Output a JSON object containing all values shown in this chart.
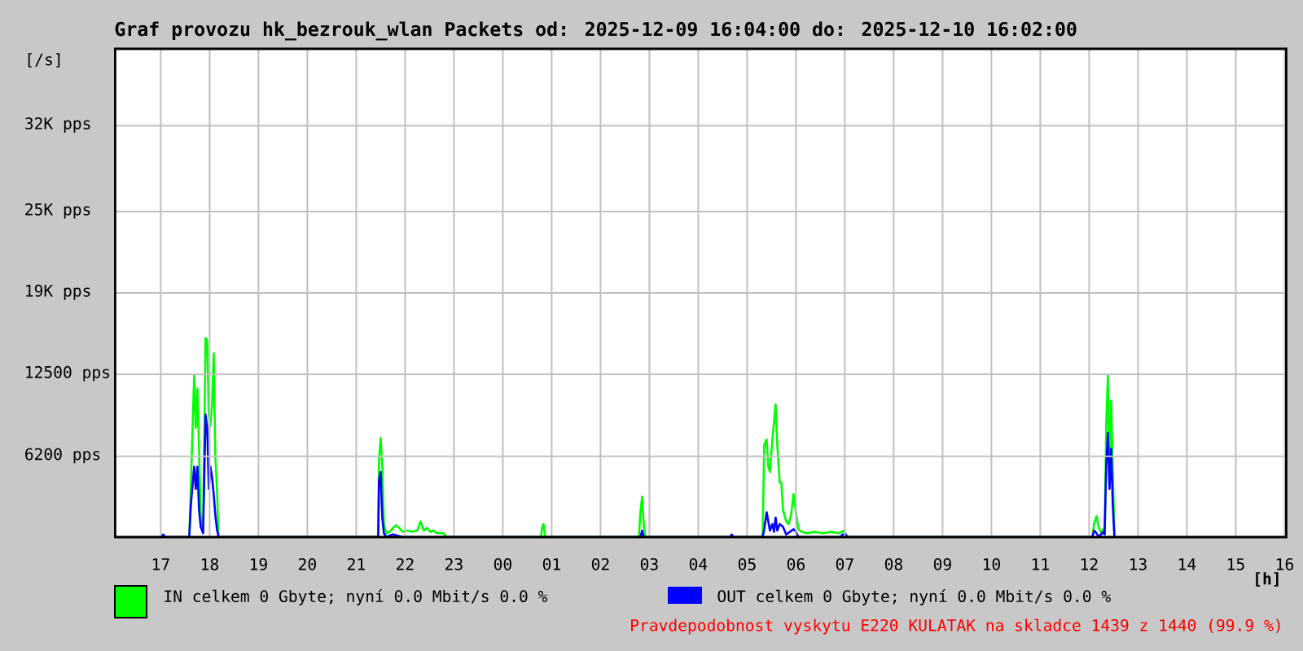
{
  "chart_data": {
    "type": "line",
    "title": "Graf provozu hk_bezrouk_wlan Packets od: 2025-12-09 16:04:00 do: 2025-12-10 16:02:00",
    "xlabel": "[h]",
    "ylabel": "[/s]",
    "xlim": [
      "2025-12-09T16:04",
      "2025-12-10T16:02"
    ],
    "xticks": [
      {
        "value": "2025-12-09T17:00",
        "label": "17"
      },
      {
        "value": "2025-12-09T18:00",
        "label": "18"
      },
      {
        "value": "2025-12-09T19:00",
        "label": "19"
      },
      {
        "value": "2025-12-09T20:00",
        "label": "20"
      },
      {
        "value": "2025-12-09T21:00",
        "label": "21"
      },
      {
        "value": "2025-12-09T22:00",
        "label": "22"
      },
      {
        "value": "2025-12-09T23:00",
        "label": "23"
      },
      {
        "value": "2025-12-10T00:00",
        "label": "00"
      },
      {
        "value": "2025-12-10T01:00",
        "label": "01"
      },
      {
        "value": "2025-12-10T02:00",
        "label": "02"
      },
      {
        "value": "2025-12-10T03:00",
        "label": "03"
      },
      {
        "value": "2025-12-10T04:00",
        "label": "04"
      },
      {
        "value": "2025-12-10T05:00",
        "label": "05"
      },
      {
        "value": "2025-12-10T06:00",
        "label": "06"
      },
      {
        "value": "2025-12-10T07:00",
        "label": "07"
      },
      {
        "value": "2025-12-10T08:00",
        "label": "08"
      },
      {
        "value": "2025-12-10T09:00",
        "label": "09"
      },
      {
        "value": "2025-12-10T10:00",
        "label": "10"
      },
      {
        "value": "2025-12-10T11:00",
        "label": "11"
      },
      {
        "value": "2025-12-10T12:00",
        "label": "12"
      },
      {
        "value": "2025-12-10T13:00",
        "label": "13"
      },
      {
        "value": "2025-12-10T14:00",
        "label": "14"
      },
      {
        "value": "2025-12-10T15:00",
        "label": "15"
      },
      {
        "value": "2025-12-10T16:00",
        "label": "16"
      }
    ],
    "ylim": [
      0,
      37500
    ],
    "yticks": [
      {
        "value": 6200,
        "label": "6200 pps"
      },
      {
        "value": 12500,
        "label": "12500 pps"
      },
      {
        "value": 18750,
        "label": "19K pps"
      },
      {
        "value": 25000,
        "label": "25K pps"
      },
      {
        "value": 31600,
        "label": "32K pps"
      }
    ],
    "grid": true,
    "legend": "bottom",
    "series": [
      {
        "name": "IN celkem 0 Gbyte; nyní 0.0 Mbit/s 0.0 %",
        "color": "#00ff00",
        "x": [
          "2025-12-09T17:35",
          "2025-12-09T17:37",
          "2025-12-09T17:41",
          "2025-12-09T17:43",
          "2025-12-09T17:45",
          "2025-12-09T17:47",
          "2025-12-09T17:49",
          "2025-12-09T17:52",
          "2025-12-09T17:55",
          "2025-12-09T17:57",
          "2025-12-09T17:59",
          "2025-12-09T18:01",
          "2025-12-09T18:03",
          "2025-12-09T18:05",
          "2025-12-09T18:07",
          "2025-12-09T18:09",
          "2025-12-09T18:11",
          "2025-12-09T21:27",
          "2025-12-09T21:28",
          "2025-12-09T21:30",
          "2025-12-09T21:32",
          "2025-12-09T21:34",
          "2025-12-09T21:37",
          "2025-12-09T21:41",
          "2025-12-09T21:45",
          "2025-12-09T21:49",
          "2025-12-09T21:53",
          "2025-12-09T21:57",
          "2025-12-09T22:03",
          "2025-12-09T22:09",
          "2025-12-09T22:15",
          "2025-12-09T22:19",
          "2025-12-09T22:23",
          "2025-12-09T22:27",
          "2025-12-09T22:31",
          "2025-12-09T22:35",
          "2025-12-09T22:39",
          "2025-12-09T22:43",
          "2025-12-09T22:47",
          "2025-12-09T22:51",
          "2025-12-10T00:47",
          "2025-12-10T00:48",
          "2025-12-10T00:50",
          "2025-12-10T00:52",
          "2025-12-10T02:47",
          "2025-12-10T02:49",
          "2025-12-10T02:51",
          "2025-12-10T02:53",
          "2025-12-10T02:55",
          "2025-12-10T05:19",
          "2025-12-10T05:21",
          "2025-12-10T05:24",
          "2025-12-10T05:26",
          "2025-12-10T05:28",
          "2025-12-10T05:31",
          "2025-12-10T05:33",
          "2025-12-10T05:35",
          "2025-12-10T05:37",
          "2025-12-10T05:40",
          "2025-12-10T05:42",
          "2025-12-10T05:44",
          "2025-12-10T05:48",
          "2025-12-10T05:51",
          "2025-12-10T05:54",
          "2025-12-10T05:57",
          "2025-12-10T06:00",
          "2025-12-10T06:03",
          "2025-12-10T06:07",
          "2025-12-10T06:13",
          "2025-12-10T06:23",
          "2025-12-10T06:33",
          "2025-12-10T06:43",
          "2025-12-10T06:53",
          "2025-12-10T06:59",
          "2025-12-10T07:03",
          "2025-12-10T12:04",
          "2025-12-10T12:06",
          "2025-12-10T12:09",
          "2025-12-10T12:12",
          "2025-12-10T12:15",
          "2025-12-10T12:17",
          "2025-12-10T12:19",
          "2025-12-10T12:21",
          "2025-12-10T12:23",
          "2025-12-10T12:25",
          "2025-12-10T12:27",
          "2025-12-10T12:29",
          "2025-12-10T12:31"
        ],
        "values": [
          0,
          4000,
          12400,
          8400,
          11400,
          6700,
          1700,
          600,
          15300,
          15100,
          9400,
          8500,
          10200,
          14100,
          6200,
          3700,
          0,
          0,
          6000,
          7600,
          5400,
          1000,
          300,
          400,
          700,
          900,
          700,
          400,
          500,
          400,
          500,
          1200,
          500,
          700,
          400,
          500,
          300,
          300,
          300,
          0,
          0,
          700,
          1000,
          0,
          0,
          1900,
          3100,
          1000,
          0,
          0,
          7100,
          7500,
          5400,
          5000,
          7500,
          8800,
          10200,
          7100,
          4200,
          4200,
          2100,
          1200,
          1000,
          1700,
          3300,
          1900,
          600,
          400,
          300,
          400,
          300,
          400,
          300,
          500,
          0,
          0,
          1000,
          1600,
          700,
          300,
          600,
          300,
          8800,
          12400,
          4200,
          10500,
          5200,
          0
        ]
      },
      {
        "name": "OUT celkem 0 Gbyte; nyní 0.0 Mbit/s 0.0 %",
        "color": "#0000ff",
        "x": [
          "2025-12-09T17:01",
          "2025-12-09T17:03",
          "2025-12-09T17:05",
          "2025-12-09T17:35",
          "2025-12-09T17:37",
          "2025-12-09T17:41",
          "2025-12-09T17:43",
          "2025-12-09T17:45",
          "2025-12-09T17:47",
          "2025-12-09T17:49",
          "2025-12-09T17:52",
          "2025-12-09T17:55",
          "2025-12-09T17:57",
          "2025-12-09T17:59",
          "2025-12-09T18:01",
          "2025-12-09T18:03",
          "2025-12-09T18:05",
          "2025-12-09T18:07",
          "2025-12-09T18:09",
          "2025-12-09T18:11",
          "2025-12-09T21:27",
          "2025-12-09T21:28",
          "2025-12-09T21:30",
          "2025-12-09T21:32",
          "2025-12-09T21:34",
          "2025-12-09T21:37",
          "2025-12-09T21:45",
          "2025-12-09T21:57",
          "2025-12-10T02:49",
          "2025-12-10T02:51",
          "2025-12-10T02:53",
          "2025-12-10T04:39",
          "2025-12-10T04:41",
          "2025-12-10T04:43",
          "2025-12-10T05:19",
          "2025-12-10T05:21",
          "2025-12-10T05:24",
          "2025-12-10T05:26",
          "2025-12-10T05:28",
          "2025-12-10T05:31",
          "2025-12-10T05:33",
          "2025-12-10T05:35",
          "2025-12-10T05:37",
          "2025-12-10T05:40",
          "2025-12-10T05:44",
          "2025-12-10T05:48",
          "2025-12-10T05:57",
          "2025-12-10T06:00",
          "2025-12-10T06:03",
          "2025-12-10T06:55",
          "2025-12-10T06:57",
          "2025-12-10T07:01",
          "2025-12-10T07:03",
          "2025-12-10T12:04",
          "2025-12-10T12:06",
          "2025-12-10T12:09",
          "2025-12-10T12:12",
          "2025-12-10T12:17",
          "2025-12-10T12:19",
          "2025-12-10T12:21",
          "2025-12-10T12:23",
          "2025-12-10T12:25",
          "2025-12-10T12:27",
          "2025-12-10T12:29",
          "2025-12-10T12:31"
        ],
        "values": [
          0,
          200,
          0,
          0,
          2500,
          5400,
          3700,
          5400,
          2100,
          800,
          300,
          9400,
          8500,
          3700,
          5400,
          4600,
          3300,
          1700,
          600,
          0,
          0,
          4400,
          5000,
          1500,
          300,
          0,
          200,
          0,
          0,
          500,
          0,
          0,
          200,
          0,
          0,
          600,
          1900,
          1200,
          500,
          1000,
          400,
          1500,
          500,
          1000,
          800,
          200,
          600,
          400,
          0,
          0,
          200,
          200,
          0,
          0,
          500,
          300,
          0,
          400,
          200,
          5600,
          8000,
          3700,
          6800,
          2500,
          0
        ]
      }
    ],
    "annotations": [
      "Pravdepodobnost vyskytu E220 KULATAK na skladce 1439 z 1440 (99.9 %)"
    ]
  }
}
